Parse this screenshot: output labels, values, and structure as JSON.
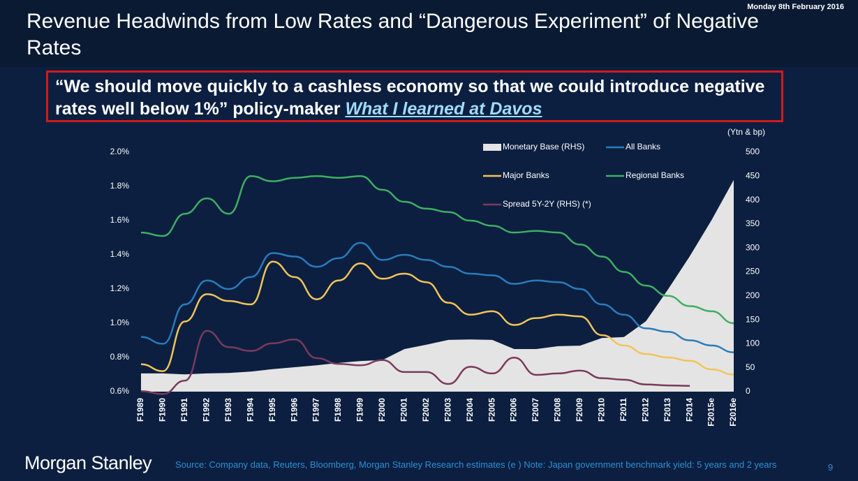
{
  "slide": {
    "date": "Monday 8th February 2016",
    "title": "Revenue Headwinds from Low Rates and “Dangerous Experiment” of Negative Rates",
    "quote": "“We should move quickly to a cashless economy so that we could introduce negative rates well below 1%” policy-maker",
    "link": "What I learned at Davos",
    "logo": "Morgan Stanley",
    "source": "Source:  Company data, Reuters, Bloomberg, Morgan Stanley Research estimates (e ) Note: Japan government benchmark yield: 5 years and 2 years",
    "page": "9"
  },
  "chart_data": {
    "type": "line",
    "y2_label": "(Ytn & bp)",
    "categories": [
      "F1989",
      "F1990",
      "F1991",
      "F1992",
      "F1993",
      "F1994",
      "F1995",
      "F1996",
      "F1997",
      "F1998",
      "F1999",
      "F2000",
      "F2001",
      "F2002",
      "F2003",
      "F2004",
      "F2005",
      "F2006",
      "F2007",
      "F2008",
      "F2009",
      "F2010",
      "F2011",
      "F2012",
      "F2013",
      "F2014",
      "F2015e",
      "F2016e"
    ],
    "ylim": [
      0.6,
      2.0
    ],
    "yticks": [
      {
        "value": 0.6,
        "label": "0.6%"
      },
      {
        "value": 0.8,
        "label": "0.8%"
      },
      {
        "value": 1.0,
        "label": "1.0%"
      },
      {
        "value": 1.2,
        "label": "1.2%"
      },
      {
        "value": 1.4,
        "label": "1.4%"
      },
      {
        "value": 1.6,
        "label": "1.6%"
      },
      {
        "value": 1.8,
        "label": "1.8%"
      },
      {
        "value": 2.0,
        "label": "2.0%"
      }
    ],
    "y2lim": [
      0,
      500
    ],
    "y2ticks": [
      0,
      50,
      100,
      150,
      200,
      250,
      300,
      350,
      400,
      450,
      500
    ],
    "series": [
      {
        "name": "Monetary Base (RHS)",
        "type": "area",
        "axis": "y2",
        "color": "#e4e4e4",
        "values": [
          38,
          38,
          36,
          38,
          39,
          42,
          47,
          51,
          55,
          60,
          64,
          66,
          89,
          98,
          108,
          109,
          108,
          89,
          89,
          95,
          96,
          112,
          114,
          147,
          213,
          283,
          359,
          442
        ]
      },
      {
        "name": "All Banks",
        "color": "#2a7bbb",
        "values": [
          0.92,
          0.88,
          1.11,
          1.25,
          1.2,
          1.27,
          1.41,
          1.39,
          1.33,
          1.38,
          1.47,
          1.37,
          1.4,
          1.37,
          1.33,
          1.29,
          1.28,
          1.23,
          1.25,
          1.24,
          1.2,
          1.11,
          1.05,
          0.97,
          0.95,
          0.9,
          0.87,
          0.83
        ]
      },
      {
        "name": "Major Banks",
        "color": "#f2c45a",
        "values": [
          0.76,
          0.72,
          1.01,
          1.17,
          1.13,
          1.11,
          1.36,
          1.27,
          1.14,
          1.25,
          1.35,
          1.26,
          1.29,
          1.24,
          1.12,
          1.05,
          1.07,
          0.99,
          1.03,
          1.05,
          1.04,
          0.93,
          0.87,
          0.82,
          0.8,
          0.78,
          0.73,
          0.7
        ]
      },
      {
        "name": "Regional Banks",
        "color": "#3fae62",
        "values": [
          1.53,
          1.51,
          1.64,
          1.73,
          1.64,
          1.86,
          1.83,
          1.85,
          1.86,
          1.85,
          1.86,
          1.78,
          1.71,
          1.67,
          1.65,
          1.6,
          1.57,
          1.53,
          1.54,
          1.53,
          1.46,
          1.39,
          1.3,
          1.22,
          1.16,
          1.1,
          1.07,
          1.0
        ]
      },
      {
        "name": "Spread 5Y-2Y (RHS) (*)",
        "axis": "y2",
        "color": "#7a3a5c",
        "values": [
          1,
          -5,
          23,
          127,
          93,
          85,
          101,
          109,
          70,
          58,
          55,
          66,
          41,
          41,
          16,
          52,
          38,
          71,
          35,
          38,
          44,
          28,
          25,
          15,
          13,
          12,
          null,
          null
        ]
      }
    ]
  }
}
